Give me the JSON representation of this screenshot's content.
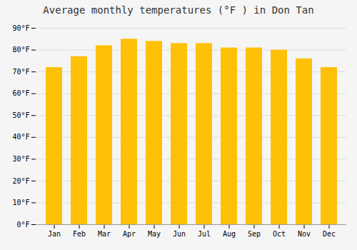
{
  "chart_data": {
    "type": "bar",
    "title": "Average monthly temperatures (°F ) in Don Tan",
    "categories": [
      "Jan",
      "Feb",
      "Mar",
      "Apr",
      "May",
      "Jun",
      "Jul",
      "Aug",
      "Sep",
      "Oct",
      "Nov",
      "Dec"
    ],
    "values": [
      72,
      77,
      82,
      85,
      84,
      83,
      83,
      81,
      81,
      80,
      76,
      72
    ],
    "color": "#FFC107",
    "ylim": [
      0,
      90
    ],
    "yticks": [
      {
        "value": 0,
        "label": "0°F"
      },
      {
        "value": 10,
        "label": "10°F"
      },
      {
        "value": 20,
        "label": "20°F"
      },
      {
        "value": 30,
        "label": "30°F"
      },
      {
        "value": 40,
        "label": "40°F"
      },
      {
        "value": 50,
        "label": "50°F"
      },
      {
        "value": 60,
        "label": "60°F"
      },
      {
        "value": 70,
        "label": "70°F"
      },
      {
        "value": 80,
        "label": "80°F"
      },
      {
        "value": 90,
        "label": "90°F"
      }
    ],
    "grid": true
  }
}
